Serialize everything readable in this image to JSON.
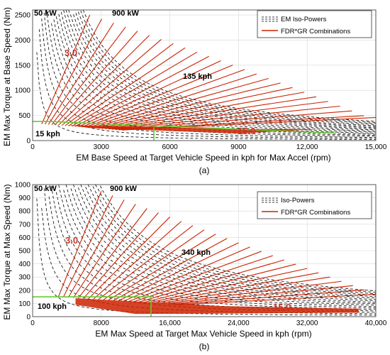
{
  "chart_data": [
    {
      "type": "line",
      "panel_label": "(a)",
      "xlabel": "EM Base Speed at Target Vehicle Speed in kph for Max Accel (rpm)",
      "ylabel": "EM Max Torque at Base Speed (Nm)",
      "xlim": [
        0,
        15000
      ],
      "ylim": [
        0,
        2600
      ],
      "x_ticks": [
        0,
        3000,
        6000,
        9000,
        12000,
        15000
      ],
      "x_tick_labels": [
        "0",
        "3000",
        "6000",
        "9000",
        "12,000",
        "15,000"
      ],
      "y_ticks": [
        0,
        500,
        1000,
        1500,
        2000,
        2500
      ],
      "y_tick_labels": [
        "0",
        "500",
        "1000",
        "1500",
        "2000",
        "2500"
      ],
      "grid": true,
      "legend_position": "top-right",
      "legend": [
        {
          "label": "EM Iso-Powers",
          "color": "#000000",
          "style": "dashed"
        },
        {
          "label": "FDR*GR Combinations",
          "color": "#cc2200",
          "style": "solid"
        }
      ],
      "annotations": [
        {
          "text": "50 kW",
          "color": "#000000"
        },
        {
          "text": "900 kW",
          "color": "#000000"
        },
        {
          "text": "3.0",
          "color": "#c0392b"
        },
        {
          "text": "135 kph",
          "color": "#000000"
        },
        {
          "text": "15 kph",
          "color": "#000000"
        },
        {
          "text": "15.0",
          "color": "#c0392b"
        }
      ],
      "iso_power_kw": [
        50,
        100,
        150,
        200,
        250,
        300,
        350,
        400,
        450,
        500,
        550,
        600,
        650,
        700,
        750,
        800,
        850,
        900
      ],
      "fdr_gr_ratios": [
        3.0,
        3.5,
        4.0,
        4.5,
        5.0,
        5.5,
        6.0,
        6.5,
        7.0,
        7.5,
        8.0,
        8.5,
        9.0,
        9.5,
        10.0,
        10.5,
        11.0,
        11.5,
        12.0,
        12.5,
        13.0,
        13.5,
        14.0,
        14.5,
        15.0
      ],
      "vehicle_speed_kph": {
        "min": 15,
        "max": 135
      },
      "base_torque_at_15kph_nm": 300,
      "base_torque_at_135kph_nm": 1320,
      "colors": {
        "iso_power": "#000000",
        "combination": "#cc2200",
        "selection": "#66cc33"
      },
      "selection": {
        "vertical_x": 5300,
        "vertical_y_top": 260,
        "horizontal_y": 380,
        "horizontal_x_end": 700,
        "diagonal_x_end": 13200,
        "diagonal_y_end": 150
      }
    },
    {
      "type": "line",
      "panel_label": "(b)",
      "xlabel": "EM Max Speed at Target Max Vehicle Speed in kph (rpm)",
      "ylabel": "EM Max Torque at Max Speed (Nm)",
      "xlim": [
        0,
        40000
      ],
      "ylim": [
        0,
        1000
      ],
      "x_ticks": [
        0,
        8000,
        16000,
        24000,
        32000,
        40000
      ],
      "x_tick_labels": [
        "0",
        "8000",
        "16,000",
        "24,000",
        "32,000",
        "40,000"
      ],
      "y_ticks": [
        0,
        100,
        200,
        300,
        400,
        500,
        600,
        700,
        800,
        900,
        1000
      ],
      "y_tick_labels": [
        "0",
        "100",
        "200",
        "300",
        "400",
        "500",
        "600",
        "700",
        "800",
        "900",
        "1000"
      ],
      "grid": true,
      "legend_position": "top-right",
      "legend": [
        {
          "label": "Iso-Powers",
          "color": "#000000",
          "style": "dashed"
        },
        {
          "label": "FDR*GR Combinations",
          "color": "#cc2200",
          "style": "solid"
        }
      ],
      "annotations": [
        {
          "text": "50 kW",
          "color": "#000000"
        },
        {
          "text": "900 kW",
          "color": "#000000"
        },
        {
          "text": "3.0",
          "color": "#c0392b"
        },
        {
          "text": "340 kph",
          "color": "#000000"
        },
        {
          "text": "100 kph",
          "color": "#000000"
        },
        {
          "text": "15.0",
          "color": "#c0392b"
        }
      ],
      "iso_power_kw": [
        50,
        100,
        150,
        200,
        250,
        300,
        350,
        400,
        450,
        500,
        550,
        600,
        650,
        700,
        750,
        800,
        850,
        900
      ],
      "fdr_gr_ratios": [
        3.0,
        3.5,
        4.0,
        4.5,
        5.0,
        5.5,
        6.0,
        6.5,
        7.0,
        7.5,
        8.0,
        8.5,
        9.0,
        9.5,
        10.0,
        10.5,
        11.0,
        11.5,
        12.0,
        12.5,
        13.0,
        13.5,
        14.0,
        14.5,
        15.0
      ],
      "vehicle_speed_kph": {
        "min": 100,
        "max": 340
      },
      "base_torque_at_100kph_nm": 140,
      "base_torque_at_340kph_nm": 850,
      "colors": {
        "iso_power": "#000000",
        "combination": "#cc2200",
        "selection": "#66cc33"
      },
      "selection": {
        "vertical_x": 13800,
        "vertical_y_top": 150,
        "horizontal_y": 150,
        "horizontal_x_end": 13800
      }
    }
  ]
}
